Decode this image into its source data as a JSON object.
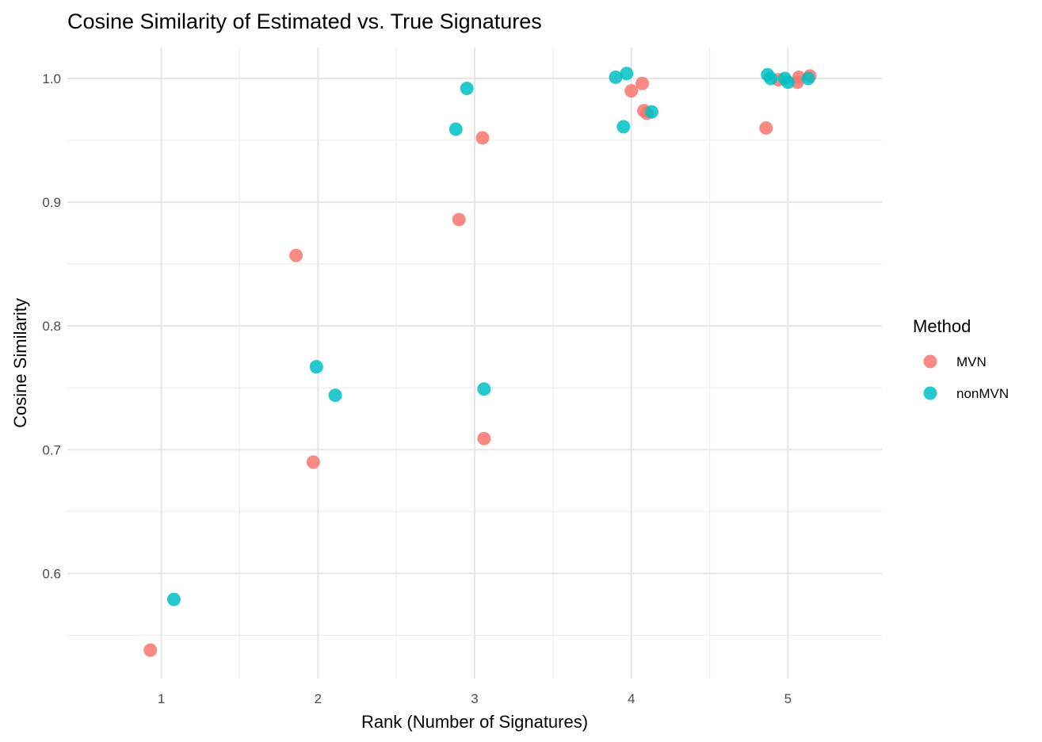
{
  "chart_data": {
    "type": "scatter",
    "title": "Cosine Similarity of Estimated vs. True Signatures",
    "xlabel": "Rank (Number of Signatures)",
    "ylabel": "Cosine Similarity",
    "xlim": [
      0.4,
      5.6
    ],
    "ylim": [
      0.515,
      1.025
    ],
    "x_ticks": [
      1,
      2,
      3,
      4,
      5
    ],
    "y_ticks": [
      0.6,
      0.7,
      0.8,
      0.9,
      1.0
    ],
    "y_tick_labels": [
      "0.6",
      "0.7",
      "0.8",
      "0.9",
      "1.0"
    ],
    "y_minor_ticks": [
      0.55,
      0.65,
      0.75,
      0.85,
      0.95
    ],
    "x_minor_ticks": [
      1.5,
      2.5,
      3.5,
      4.5
    ],
    "grid": true,
    "legend": {
      "title": "Method",
      "position": "right"
    },
    "series": [
      {
        "name": "MVN",
        "color": "#F8766D",
        "points": [
          {
            "x": 0.93,
            "y": 0.538
          },
          {
            "x": 1.86,
            "y": 0.857
          },
          {
            "x": 1.97,
            "y": 0.69
          },
          {
            "x": 2.9,
            "y": 0.886
          },
          {
            "x": 3.05,
            "y": 0.952
          },
          {
            "x": 3.06,
            "y": 0.709
          },
          {
            "x": 4.0,
            "y": 0.99
          },
          {
            "x": 4.07,
            "y": 0.996
          },
          {
            "x": 4.08,
            "y": 0.974
          },
          {
            "x": 4.1,
            "y": 0.972
          },
          {
            "x": 4.86,
            "y": 0.96
          },
          {
            "x": 4.94,
            "y": 0.999
          },
          {
            "x": 5.06,
            "y": 0.997
          },
          {
            "x": 5.07,
            "y": 1.001
          },
          {
            "x": 5.14,
            "y": 1.002
          }
        ]
      },
      {
        "name": "nonMVN",
        "color": "#00BFC4",
        "points": [
          {
            "x": 1.08,
            "y": 0.579
          },
          {
            "x": 1.99,
            "y": 0.767
          },
          {
            "x": 2.11,
            "y": 0.744
          },
          {
            "x": 2.88,
            "y": 0.959
          },
          {
            "x": 2.95,
            "y": 0.992
          },
          {
            "x": 3.06,
            "y": 0.749
          },
          {
            "x": 3.9,
            "y": 1.001
          },
          {
            "x": 3.95,
            "y": 0.961
          },
          {
            "x": 3.97,
            "y": 1.004
          },
          {
            "x": 4.13,
            "y": 0.973
          },
          {
            "x": 4.87,
            "y": 1.003
          },
          {
            "x": 4.89,
            "y": 1.0
          },
          {
            "x": 4.98,
            "y": 1.0
          },
          {
            "x": 5.0,
            "y": 0.997
          },
          {
            "x": 5.13,
            "y": 1.0
          }
        ]
      }
    ]
  }
}
